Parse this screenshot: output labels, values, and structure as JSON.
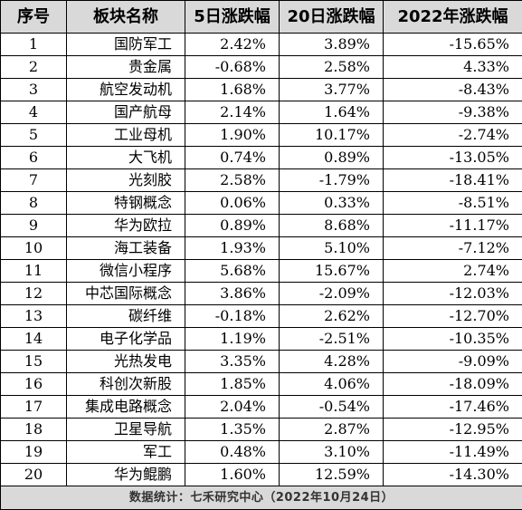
{
  "table": {
    "headers": [
      "序号",
      "板块名称",
      "5日涨跌幅",
      "20日涨跌幅",
      "2022年涨跌幅"
    ],
    "rows": [
      {
        "idx": "1",
        "name": "国防军工",
        "d5": "2.42%",
        "d20": "3.89%",
        "ytd": "-15.65%"
      },
      {
        "idx": "2",
        "name": "贵金属",
        "d5": "-0.68%",
        "d20": "2.58%",
        "ytd": "4.33%"
      },
      {
        "idx": "3",
        "name": "航空发动机",
        "d5": "1.68%",
        "d20": "3.77%",
        "ytd": "-8.43%"
      },
      {
        "idx": "4",
        "name": "国产航母",
        "d5": "2.14%",
        "d20": "1.64%",
        "ytd": "-9.38%"
      },
      {
        "idx": "5",
        "name": "工业母机",
        "d5": "1.90%",
        "d20": "10.17%",
        "ytd": "-2.74%"
      },
      {
        "idx": "6",
        "name": "大飞机",
        "d5": "0.74%",
        "d20": "0.89%",
        "ytd": "-13.05%"
      },
      {
        "idx": "7",
        "name": "光刻胶",
        "d5": "2.58%",
        "d20": "-1.79%",
        "ytd": "-18.41%"
      },
      {
        "idx": "8",
        "name": "特钢概念",
        "d5": "0.06%",
        "d20": "0.33%",
        "ytd": "-8.51%"
      },
      {
        "idx": "9",
        "name": "华为欧拉",
        "d5": "0.89%",
        "d20": "8.68%",
        "ytd": "-11.17%"
      },
      {
        "idx": "10",
        "name": "海工装备",
        "d5": "1.93%",
        "d20": "5.10%",
        "ytd": "-7.12%"
      },
      {
        "idx": "11",
        "name": "微信小程序",
        "d5": "5.68%",
        "d20": "15.67%",
        "ytd": "2.74%"
      },
      {
        "idx": "12",
        "name": "中芯国际概念",
        "d5": "3.86%",
        "d20": "-2.09%",
        "ytd": "-12.03%"
      },
      {
        "idx": "13",
        "name": "碳纤维",
        "d5": "-0.18%",
        "d20": "2.62%",
        "ytd": "-12.70%"
      },
      {
        "idx": "14",
        "name": "电子化学品",
        "d5": "1.19%",
        "d20": "-2.51%",
        "ytd": "-10.35%"
      },
      {
        "idx": "15",
        "name": "光热发电",
        "d5": "3.35%",
        "d20": "4.28%",
        "ytd": "-9.09%"
      },
      {
        "idx": "16",
        "name": "科创次新股",
        "d5": "1.85%",
        "d20": "4.06%",
        "ytd": "-18.09%"
      },
      {
        "idx": "17",
        "name": "集成电路概念",
        "d5": "2.04%",
        "d20": "-0.54%",
        "ytd": "-17.46%"
      },
      {
        "idx": "18",
        "name": "卫星导航",
        "d5": "1.35%",
        "d20": "2.87%",
        "ytd": "-12.95%"
      },
      {
        "idx": "19",
        "name": "军工",
        "d5": "0.48%",
        "d20": "3.10%",
        "ytd": "-11.49%"
      },
      {
        "idx": "20",
        "name": "华为鲲鹏",
        "d5": "1.60%",
        "d20": "12.59%",
        "ytd": "-14.30%"
      }
    ],
    "footer": "数据统计：七禾研究中心（2022年10月24日）"
  }
}
